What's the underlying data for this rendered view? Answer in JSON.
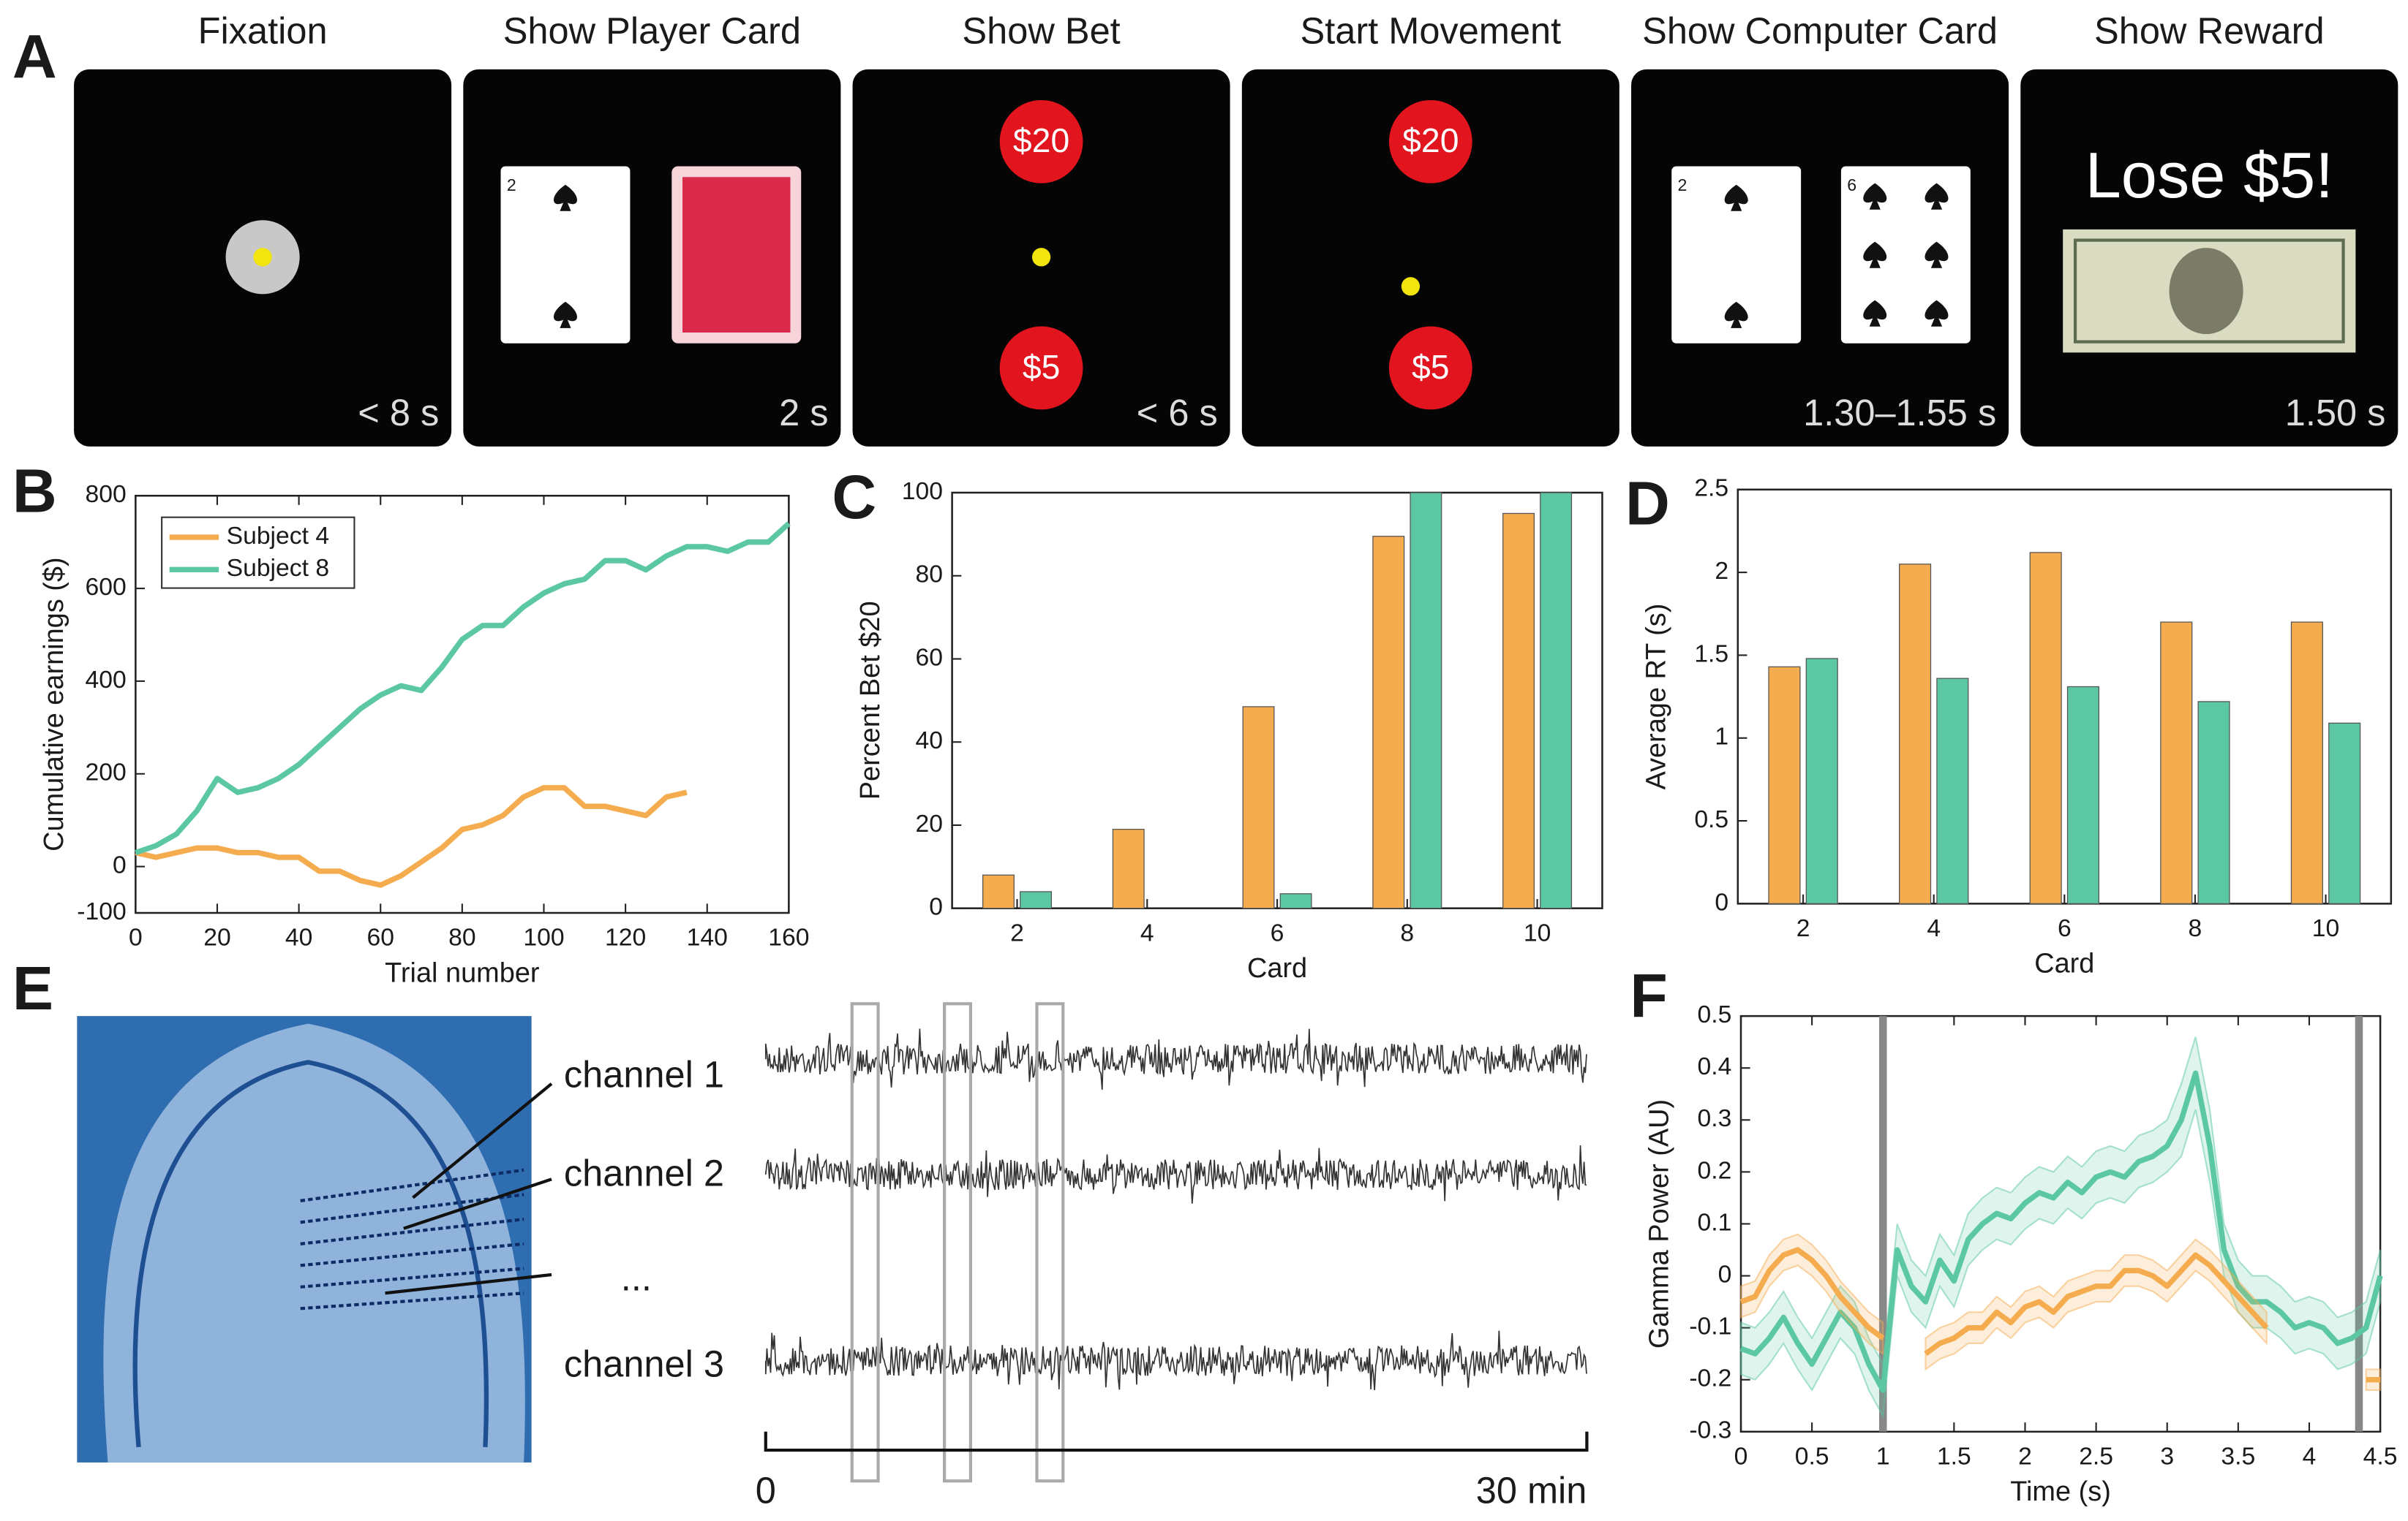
{
  "panel_labels": [
    "A",
    "B",
    "C",
    "D",
    "E",
    "F"
  ],
  "task": {
    "steps": [
      {
        "title": "Fixation",
        "duration": "< 8 s"
      },
      {
        "title": "Show Player Card",
        "duration": "2 s"
      },
      {
        "title": "Show Bet",
        "duration": "< 6 s"
      },
      {
        "title": "Start Movement",
        "duration": ""
      },
      {
        "title": "Show Computer Card",
        "duration": "1.30–1.55 s"
      },
      {
        "title": "Show Reward",
        "duration": "1.50 s"
      }
    ],
    "bets": [
      "$20",
      "$5"
    ],
    "cards": [
      "2",
      "6"
    ],
    "reward": "Lose $5!"
  },
  "recording": {
    "channels": [
      "channel 1",
      "channel 2",
      "...",
      "channel 3"
    ],
    "scale_start": "0",
    "scale_end": "30 min"
  },
  "chart_data": [
    {
      "type": "line",
      "xlabel": "Trial number",
      "ylabel": "Cumulative earnings ($)",
      "legend": "upper left",
      "x": [
        0,
        5,
        10,
        15,
        20,
        25,
        30,
        35,
        40,
        45,
        50,
        55,
        60,
        65,
        70,
        75,
        80,
        85,
        90,
        95,
        100,
        105,
        110,
        115,
        120,
        125,
        130,
        135,
        140,
        145,
        150,
        155,
        160
      ],
      "series": [
        {
          "name": "Subject 4",
          "color": "#f5ac4f",
          "values": [
            30,
            20,
            30,
            40,
            40,
            30,
            30,
            20,
            20,
            -10,
            -10,
            -30,
            -40,
            -20,
            10,
            40,
            80,
            90,
            110,
            150,
            170,
            170,
            130,
            130,
            120,
            110,
            150,
            160,
            null,
            null,
            null,
            null,
            null
          ]
        },
        {
          "name": "Subject 8",
          "color": "#5bc8a3",
          "values": [
            30,
            45,
            70,
            120,
            190,
            160,
            170,
            190,
            220,
            260,
            300,
            340,
            370,
            390,
            380,
            430,
            490,
            520,
            520,
            560,
            590,
            610,
            620,
            660,
            660,
            640,
            670,
            690,
            690,
            680,
            700,
            700,
            740
          ]
        }
      ],
      "xlim": [
        0,
        160
      ],
      "xticks": [
        0,
        20,
        40,
        60,
        80,
        100,
        120,
        140,
        160
      ],
      "ylim": [
        -100,
        800
      ],
      "yticks": [
        -100,
        0,
        200,
        400,
        600,
        800
      ]
    },
    {
      "type": "bar",
      "xlabel": "Card",
      "ylabel": "Percent Bet $20",
      "categories": [
        "2",
        "4",
        "6",
        "8",
        "10"
      ],
      "series": [
        {
          "color": "#f5ac4f",
          "values": [
            8,
            19,
            48.5,
            89.5,
            95
          ]
        },
        {
          "color": "#5bc8a3",
          "values": [
            4,
            0,
            3.5,
            100,
            100
          ]
        }
      ],
      "ylim": [
        0,
        100
      ],
      "yticks": [
        0,
        20,
        40,
        60,
        80,
        100
      ]
    },
    {
      "type": "bar",
      "xlabel": "Card",
      "ylabel": "Average RT (s)",
      "categories": [
        "2",
        "4",
        "6",
        "8",
        "10"
      ],
      "series": [
        {
          "color": "#f5ac4f",
          "values": [
            1.43,
            2.05,
            2.12,
            1.7,
            1.7
          ]
        },
        {
          "color": "#5bc8a3",
          "values": [
            1.48,
            1.36,
            1.31,
            1.22,
            1.09
          ]
        }
      ],
      "ylim": [
        0,
        2.5
      ],
      "yticks": [
        0,
        0.5,
        1,
        1.5,
        2,
        2.5
      ]
    },
    {
      "type": "line",
      "xlabel": "Time (s)",
      "ylabel": "Gamma Power (AU)",
      "event_lines": [
        1,
        4.35
      ],
      "x": [
        0,
        0.1,
        0.2,
        0.3,
        0.4,
        0.5,
        0.6,
        0.7,
        0.8,
        0.9,
        1,
        1.1,
        1.2,
        1.3,
        1.4,
        1.5,
        1.6,
        1.7,
        1.8,
        1.9,
        2,
        2.1,
        2.2,
        2.3,
        2.4,
        2.5,
        2.6,
        2.7,
        2.8,
        2.9,
        3,
        3.1,
        3.2,
        3.3,
        3.4,
        3.5,
        3.6,
        3.7,
        3.8,
        3.9,
        4,
        4.1,
        4.2,
        4.3,
        4.4,
        4.5
      ],
      "series": [
        {
          "color": "#5bc8a3",
          "values": [
            -0.14,
            -0.15,
            -0.12,
            -0.08,
            -0.13,
            -0.17,
            -0.12,
            -0.07,
            -0.1,
            -0.17,
            -0.22,
            0.05,
            -0.02,
            -0.05,
            0.03,
            -0.01,
            0.07,
            0.1,
            0.12,
            0.11,
            0.14,
            0.16,
            0.15,
            0.18,
            0.16,
            0.19,
            0.2,
            0.19,
            0.22,
            0.23,
            0.25,
            0.3,
            0.39,
            0.25,
            0.05,
            -0.02,
            -0.05,
            -0.05,
            -0.07,
            -0.1,
            -0.09,
            -0.1,
            -0.13,
            -0.12,
            -0.1,
            0
          ],
          "errors": [
            0.05,
            0.05,
            0.05,
            0.05,
            0.05,
            0.05,
            0.05,
            0.05,
            0.05,
            0.05,
            0.05,
            0.05,
            0.05,
            0.05,
            0.05,
            0.05,
            0.05,
            0.05,
            0.05,
            0.05,
            0.05,
            0.05,
            0.05,
            0.05,
            0.05,
            0.05,
            0.05,
            0.05,
            0.05,
            0.05,
            0.05,
            0.07,
            0.07,
            0.07,
            0.05,
            0.05,
            0.05,
            0.05,
            0.05,
            0.05,
            0.05,
            0.05,
            0.05,
            0.05,
            0.05,
            0.05
          ]
        },
        {
          "color": "#f5ac4f",
          "values": [
            -0.05,
            -0.04,
            0.01,
            0.04,
            0.05,
            0.03,
            0,
            -0.04,
            -0.07,
            -0.1,
            -0.12,
            null,
            null,
            -0.15,
            -0.13,
            -0.12,
            -0.1,
            -0.1,
            -0.07,
            -0.09,
            -0.06,
            -0.05,
            -0.07,
            -0.04,
            -0.03,
            -0.02,
            -0.02,
            0.01,
            0.01,
            0,
            -0.02,
            0.01,
            0.04,
            0.02,
            -0.01,
            -0.04,
            -0.07,
            -0.1,
            null,
            null,
            null,
            null,
            null,
            null,
            -0.2,
            -0.2
          ],
          "errors": [
            0.03,
            0.03,
            0.03,
            0.03,
            0.03,
            0.03,
            0.03,
            0.03,
            0.03,
            0.03,
            0.03,
            null,
            null,
            0.03,
            0.03,
            0.03,
            0.03,
            0.03,
            0.03,
            0.03,
            0.03,
            0.03,
            0.03,
            0.03,
            0.03,
            0.03,
            0.03,
            0.03,
            0.03,
            0.03,
            0.03,
            0.03,
            0.03,
            0.03,
            0.03,
            0.03,
            0.03,
            0.03,
            null,
            null,
            null,
            null,
            null,
            null,
            0.02,
            0.02
          ]
        }
      ],
      "xlim": [
        0,
        4.5
      ],
      "xticks": [
        0,
        0.5,
        1,
        1.5,
        2,
        2.5,
        3,
        3.5,
        4,
        4.5
      ],
      "ylim": [
        -0.3,
        0.5
      ],
      "yticks": [
        -0.3,
        -0.2,
        -0.1,
        0,
        0.1,
        0.2,
        0.3,
        0.4,
        0.5
      ]
    }
  ]
}
